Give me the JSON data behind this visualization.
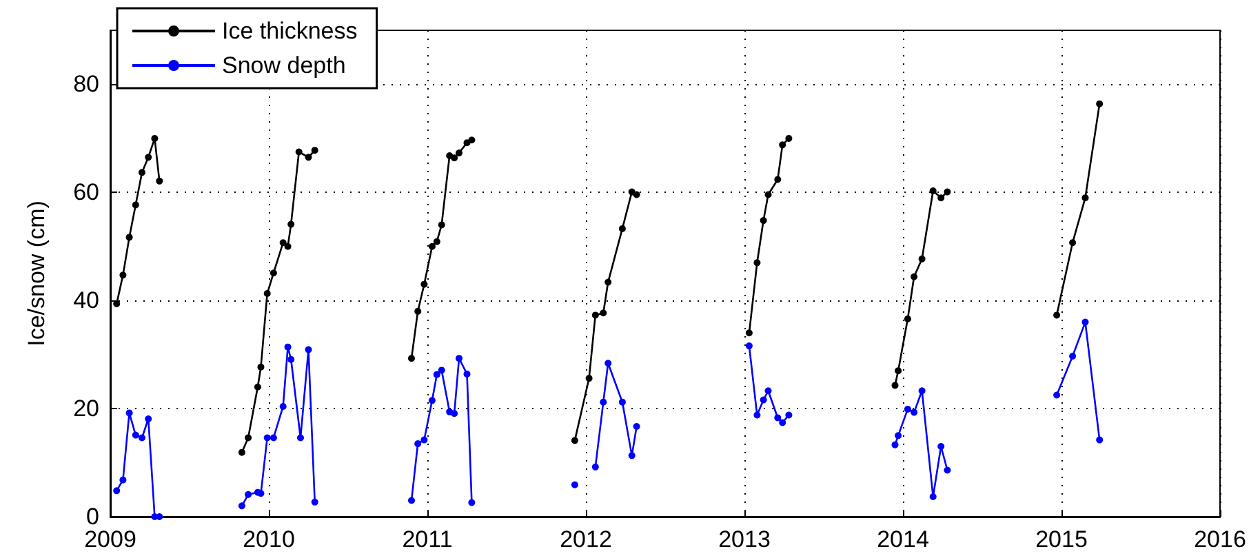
{
  "chart_data": {
    "type": "line",
    "ylabel": "Ice/snow (cm)",
    "xlim": [
      2009,
      2016
    ],
    "xticks": [
      2009,
      2010,
      2011,
      2012,
      2013,
      2014,
      2015,
      2016
    ],
    "ylim": [
      0,
      90
    ],
    "yticks": [
      0,
      20,
      40,
      60,
      80
    ],
    "grid": true,
    "legend": "top left",
    "marker": "circle",
    "line_style": "solid",
    "series": [
      {
        "name": "Ice thickness",
        "color": "#000000",
        "x": [
          2009.04,
          2009.08,
          2009.12,
          2009.16,
          2009.2,
          2009.24,
          2009.28,
          2009.31,
          2009.6,
          2009.83,
          2009.87,
          2009.93,
          2009.95,
          2009.99,
          2010.03,
          2010.09,
          2010.12,
          2010.14,
          2010.19,
          2010.25,
          2010.29,
          2010.6,
          2010.9,
          2010.94,
          2010.98,
          2011.03,
          2011.06,
          2011.09,
          2011.14,
          2011.17,
          2011.2,
          2011.25,
          2011.28,
          2011.6,
          2011.93,
          2012.02,
          2012.06,
          2012.11,
          2012.14,
          2012.23,
          2012.29,
          2012.32,
          2012.6,
          2013.03,
          2013.08,
          2013.12,
          2013.15,
          2013.21,
          2013.24,
          2013.28,
          2013.6,
          2013.95,
          2013.97,
          2014.03,
          2014.07,
          2014.12,
          2014.19,
          2014.24,
          2014.28,
          2014.6,
          2014.97,
          2015.07,
          2015.15,
          2015.24
        ],
        "values": [
          39.4,
          44.7,
          51.7,
          57.7,
          63.7,
          66.5,
          70.0,
          62.1,
          null,
          11.9,
          14.6,
          24.0,
          27.7,
          41.3,
          45.1,
          50.7,
          50.0,
          54.1,
          67.5,
          66.5,
          67.8,
          null,
          29.3,
          38.0,
          43.0,
          50.0,
          50.9,
          54.0,
          66.8,
          66.4,
          67.3,
          69.2,
          69.7,
          null,
          14.1,
          25.6,
          37.3,
          37.7,
          43.4,
          53.3,
          60.1,
          59.6,
          null,
          34.0,
          47.0,
          54.8,
          59.6,
          62.4,
          68.8,
          70.0,
          null,
          24.3,
          27.0,
          36.6,
          44.4,
          47.7,
          60.3,
          59.0,
          60.1,
          null,
          37.3,
          50.7,
          59.0,
          76.4
        ]
      },
      {
        "name": "Snow depth",
        "color": "#0000ff",
        "x": [
          2009.04,
          2009.08,
          2009.12,
          2009.16,
          2009.2,
          2009.24,
          2009.28,
          2009.31,
          2009.6,
          2009.83,
          2009.87,
          2009.93,
          2009.95,
          2009.99,
          2010.03,
          2010.09,
          2010.12,
          2010.14,
          2010.2,
          2010.25,
          2010.29,
          2010.6,
          2010.9,
          2010.94,
          2010.98,
          2011.03,
          2011.06,
          2011.09,
          2011.14,
          2011.17,
          2011.2,
          2011.25,
          2011.28,
          2011.6,
          2011.93,
          2012.0,
          2012.06,
          2012.11,
          2012.14,
          2012.23,
          2012.29,
          2012.32,
          2012.6,
          2013.03,
          2013.08,
          2013.12,
          2013.15,
          2013.21,
          2013.24,
          2013.28,
          2013.6,
          2013.95,
          2013.97,
          2014.03,
          2014.07,
          2014.12,
          2014.19,
          2014.24,
          2014.28,
          2014.6,
          2014.97,
          2015.07,
          2015.15,
          2015.24
        ],
        "values": [
          4.8,
          6.8,
          19.2,
          15.1,
          14.6,
          18.1,
          0,
          0,
          null,
          2.0,
          4.1,
          4.5,
          4.3,
          14.6,
          14.6,
          20.4,
          31.4,
          29.1,
          14.6,
          30.9,
          2.7,
          null,
          3.0,
          13.5,
          14.2,
          21.5,
          26.3,
          27.1,
          19.4,
          19.1,
          29.3,
          26.4,
          2.6,
          null,
          5.9,
          null,
          9.2,
          21.2,
          28.4,
          21.2,
          11.3,
          16.7,
          null,
          31.6,
          18.8,
          21.6,
          23.3,
          18.3,
          17.4,
          18.8,
          null,
          13.3,
          15.0,
          19.9,
          19.3,
          23.3,
          3.7,
          13.0,
          8.6,
          null,
          22.5,
          29.7,
          36.0,
          14.2
        ]
      }
    ]
  }
}
